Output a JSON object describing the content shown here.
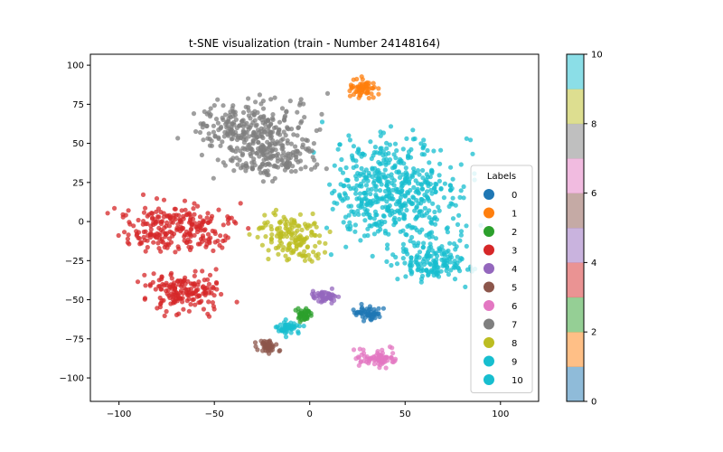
{
  "chart_data": {
    "type": "scatter",
    "title": "t-SNE visualization (train - Number 24148164)",
    "xlabel": "",
    "ylabel": "",
    "xlim": [
      -115,
      120
    ],
    "ylim": [
      -115,
      107
    ],
    "x_ticks": [
      -100,
      -50,
      0,
      50,
      100
    ],
    "y_ticks": [
      -100,
      -75,
      -50,
      -25,
      0,
      25,
      50,
      75,
      100
    ],
    "grid": false,
    "legend": {
      "title": "Labels",
      "placement": "right",
      "entries": [
        {
          "label": "0",
          "color": "#1f77b4"
        },
        {
          "label": "1",
          "color": "#ff7f0e"
        },
        {
          "label": "2",
          "color": "#2ca02c"
        },
        {
          "label": "3",
          "color": "#d62728"
        },
        {
          "label": "4",
          "color": "#9467bd"
        },
        {
          "label": "5",
          "color": "#8c564b"
        },
        {
          "label": "6",
          "color": "#e377c2"
        },
        {
          "label": "7",
          "color": "#7f7f7f"
        },
        {
          "label": "8",
          "color": "#bcbd22"
        },
        {
          "label": "9",
          "color": "#17becf"
        },
        {
          "label": "10",
          "color": "#17becf"
        }
      ]
    },
    "clusters": [
      {
        "label": "9",
        "color": "#17becf",
        "center": [
          45,
          20
        ],
        "spread": [
          34,
          32
        ]
      },
      {
        "label": "9",
        "color": "#17becf",
        "center": [
          65,
          -25
        ],
        "spread": [
          18,
          14
        ]
      },
      {
        "label": "7",
        "color": "#7f7f7f",
        "center": [
          -30,
          60
        ],
        "spread": [
          30,
          16
        ]
      },
      {
        "label": "7",
        "color": "#7f7f7f",
        "center": [
          -20,
          40
        ],
        "spread": [
          22,
          12
        ]
      },
      {
        "label": "3",
        "color": "#d62728",
        "center": [
          -70,
          -5
        ],
        "spread": [
          28,
          16
        ]
      },
      {
        "label": "3",
        "color": "#d62728",
        "center": [
          -65,
          -45
        ],
        "spread": [
          20,
          14
        ]
      },
      {
        "label": "8",
        "color": "#bcbd22",
        "center": [
          -10,
          -10
        ],
        "spread": [
          16,
          16
        ]
      },
      {
        "label": "1",
        "color": "#ff7f0e",
        "center": [
          28,
          85
        ],
        "spread": [
          8,
          6
        ]
      },
      {
        "label": "6",
        "color": "#e377c2",
        "center": [
          35,
          -87
        ],
        "spread": [
          13,
          6
        ]
      },
      {
        "label": "0",
        "color": "#1f77b4",
        "center": [
          30,
          -58
        ],
        "spread": [
          7,
          4
        ]
      },
      {
        "label": "4",
        "color": "#9467bd",
        "center": [
          8,
          -48
        ],
        "spread": [
          6,
          4
        ]
      },
      {
        "label": "2",
        "color": "#2ca02c",
        "center": [
          -3,
          -60
        ],
        "spread": [
          4,
          4
        ]
      },
      {
        "label": "10",
        "color": "#17becf",
        "center": [
          -12,
          -68
        ],
        "spread": [
          6,
          4
        ]
      },
      {
        "label": "5",
        "color": "#8c564b",
        "center": [
          -22,
          -80
        ],
        "spread": [
          5,
          4
        ]
      }
    ],
    "colorbar": {
      "range": [
        0,
        10
      ],
      "ticks": [
        0,
        2,
        4,
        6,
        8,
        10
      ],
      "colors": [
        "#1f77b4",
        "#ff7f0e",
        "#2ca02c",
        "#d62728",
        "#9467bd",
        "#8c564b",
        "#e377c2",
        "#7f7f7f",
        "#bcbd22",
        "#17becf"
      ]
    }
  }
}
